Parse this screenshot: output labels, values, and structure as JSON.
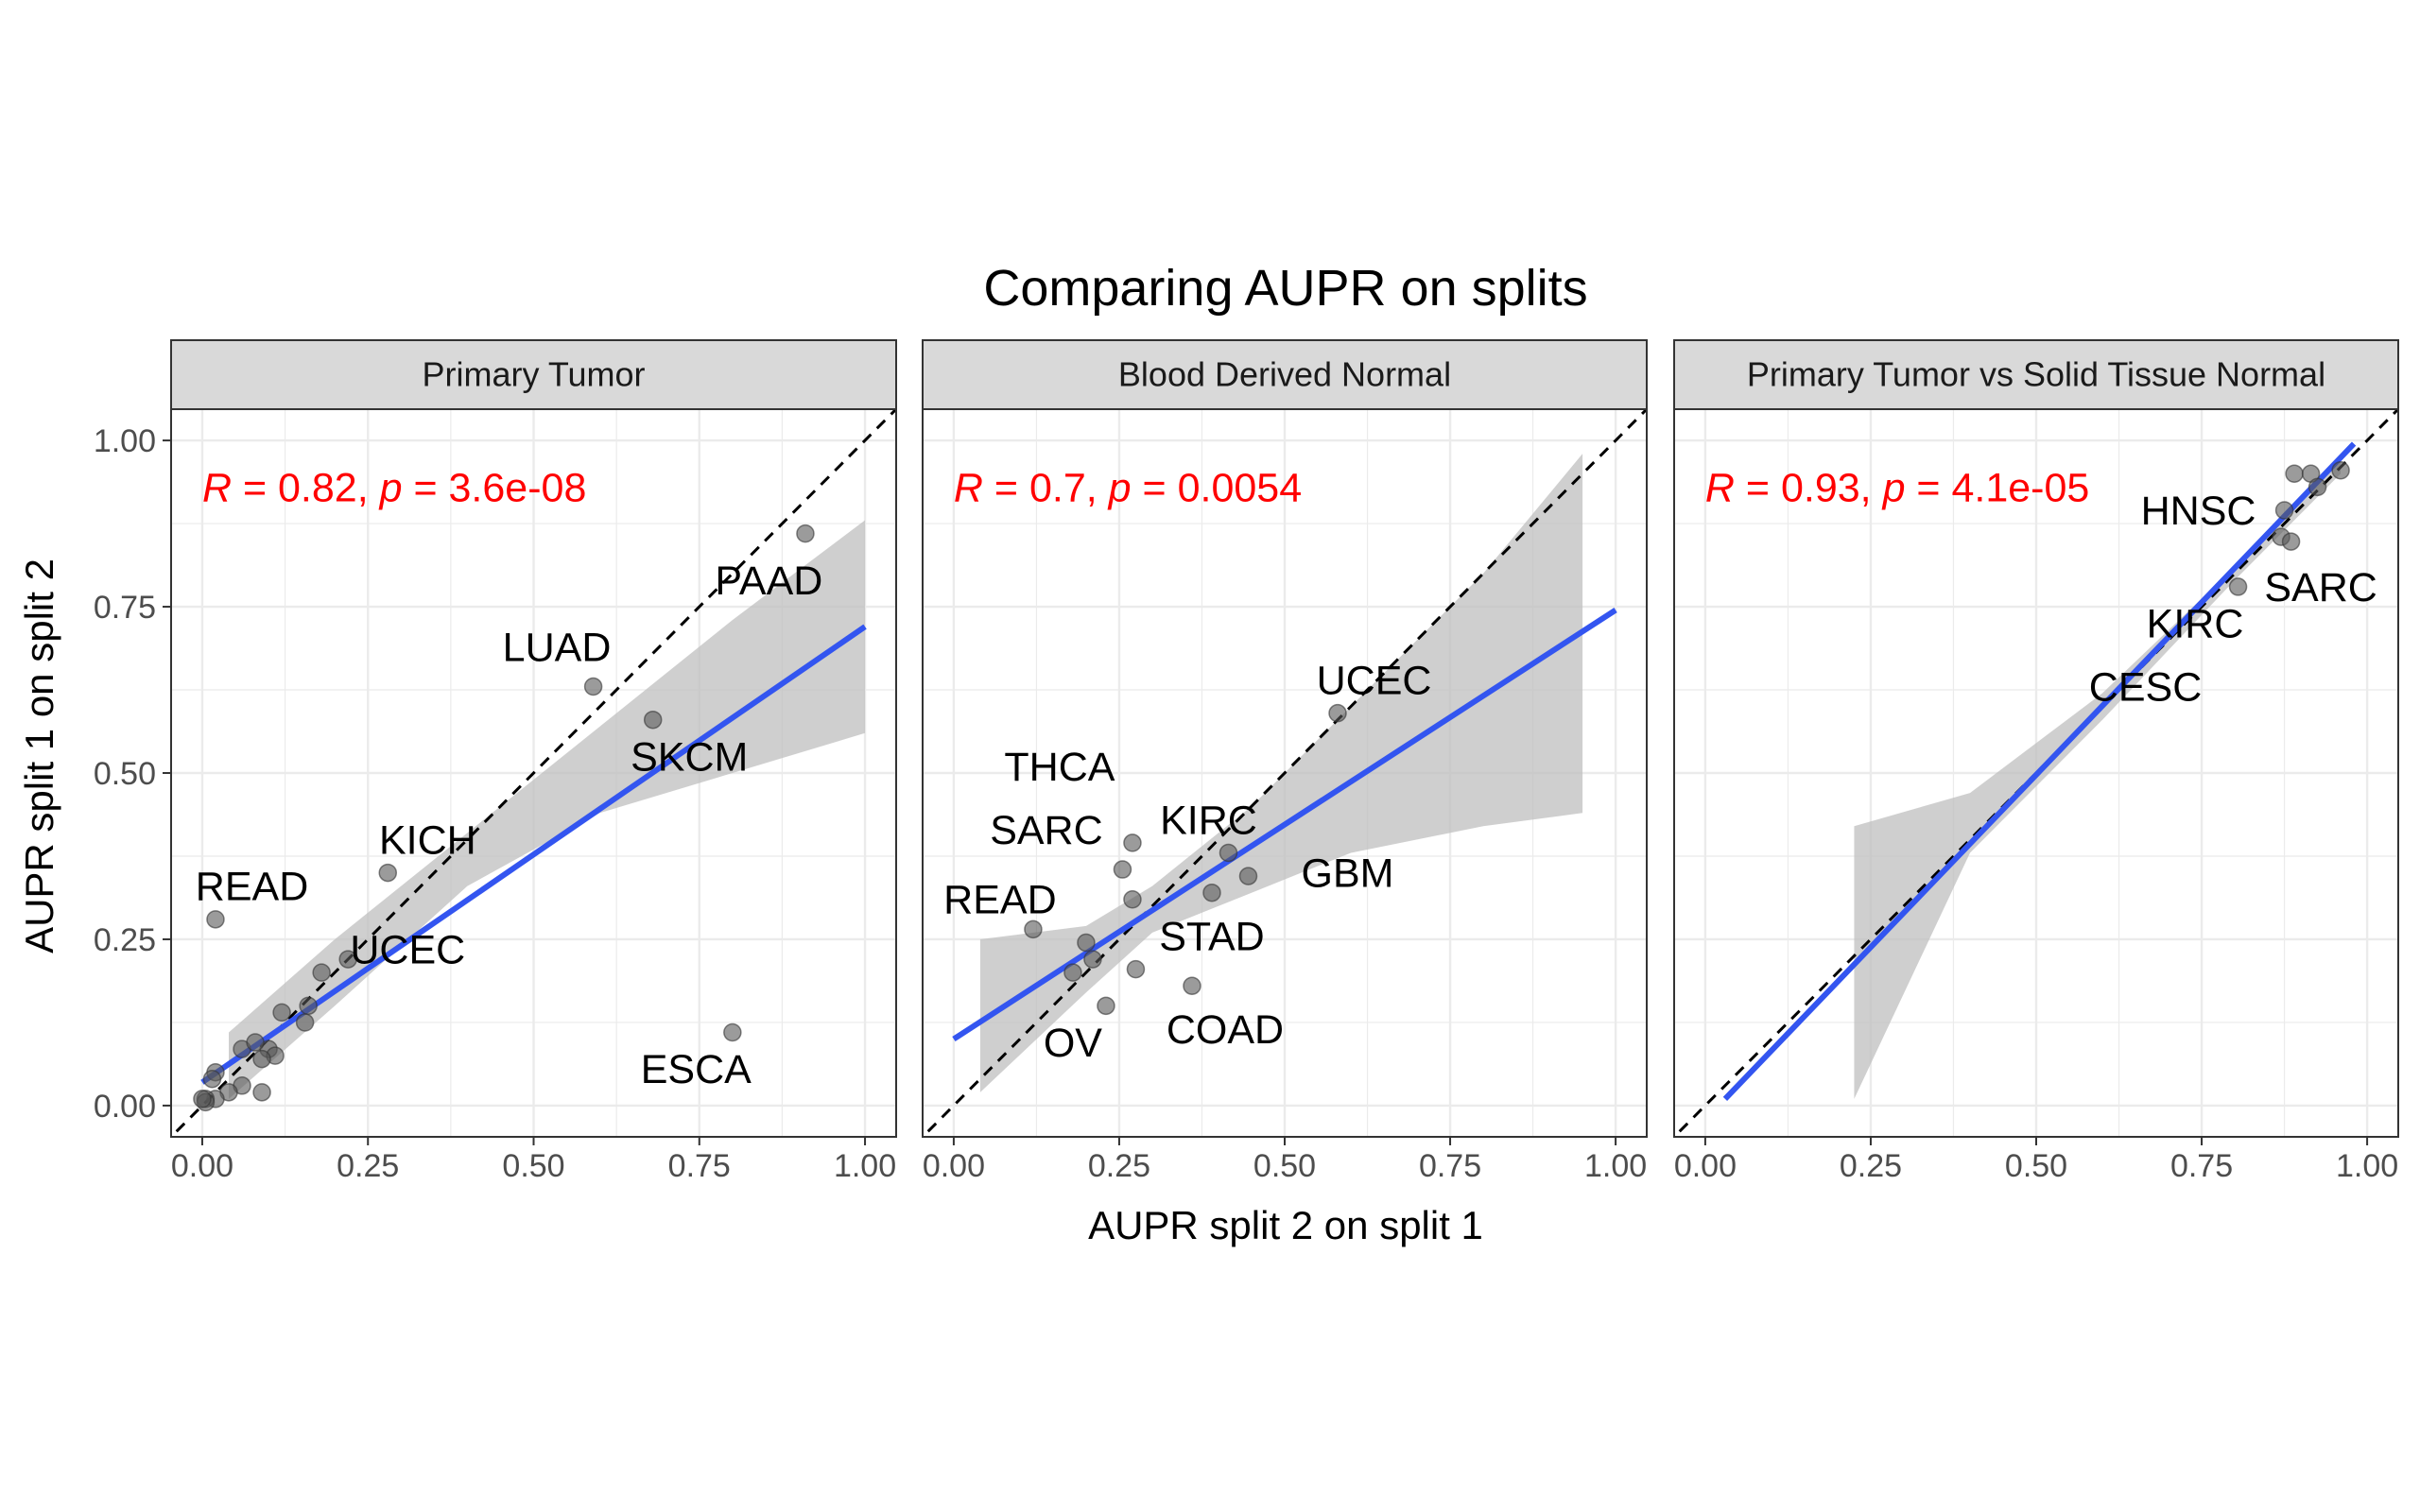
{
  "title": "Comparing AUPR on splits",
  "xlabel": "AUPR split 2 on split 1",
  "ylabel": "AUPR split 1 on split 2",
  "ticks": [
    "0.00",
    "0.25",
    "0.50",
    "0.75",
    "1.00"
  ],
  "colors": {
    "point": "#595959",
    "fit_line": "#3355f0",
    "ribbon": "#bfbfbf",
    "stat_text": "#ff0000",
    "strip_bg": "#d9d9d9",
    "grid": "#ebebeb"
  },
  "chart_data": [
    {
      "type": "scatter",
      "panel": "Primary Tumor",
      "stat": {
        "r_label": "R",
        "r": "0.82",
        "p_label": "p",
        "p": "3.6e-08"
      },
      "xlim": [
        0,
        1
      ],
      "ylim": [
        0,
        1
      ],
      "identity_line": true,
      "fit": {
        "x": [
          0.0,
          1.0
        ],
        "y": [
          0.035,
          0.72
        ]
      },
      "ribbon": {
        "x": [
          0.04,
          0.2,
          0.4,
          0.6,
          0.8,
          1.0
        ],
        "upper": [
          0.11,
          0.25,
          0.41,
          0.57,
          0.73,
          0.88
        ],
        "lower": [
          0.01,
          0.15,
          0.33,
          0.44,
          0.5,
          0.56
        ]
      },
      "points": [
        {
          "x": 0.02,
          "y": 0.28
        },
        {
          "x": 0.28,
          "y": 0.35
        },
        {
          "x": 0.59,
          "y": 0.63
        },
        {
          "x": 0.68,
          "y": 0.58
        },
        {
          "x": 0.91,
          "y": 0.86
        },
        {
          "x": 0.8,
          "y": 0.11
        },
        {
          "x": 0.18,
          "y": 0.2
        },
        {
          "x": 0.22,
          "y": 0.22
        },
        {
          "x": 0.12,
          "y": 0.14
        },
        {
          "x": 0.16,
          "y": 0.15
        },
        {
          "x": 0.155,
          "y": 0.125
        },
        {
          "x": 0.1,
          "y": 0.085
        },
        {
          "x": 0.11,
          "y": 0.075
        },
        {
          "x": 0.09,
          "y": 0.07
        },
        {
          "x": 0.06,
          "y": 0.085
        },
        {
          "x": 0.08,
          "y": 0.095
        },
        {
          "x": 0.06,
          "y": 0.03
        },
        {
          "x": 0.09,
          "y": 0.02
        },
        {
          "x": 0.04,
          "y": 0.02
        },
        {
          "x": 0.02,
          "y": 0.05
        },
        {
          "x": 0.015,
          "y": 0.04
        },
        {
          "x": 0.02,
          "y": 0.01
        },
        {
          "x": 0.005,
          "y": 0.01
        },
        {
          "x": 0.005,
          "y": 0.005
        },
        {
          "x": 0.0,
          "y": 0.01
        }
      ],
      "labels": [
        {
          "text": "READ",
          "x": 0.075,
          "y": 0.33
        },
        {
          "text": "KICH",
          "x": 0.34,
          "y": 0.4
        },
        {
          "text": "LUAD",
          "x": 0.535,
          "y": 0.69
        },
        {
          "text": "SKCM",
          "x": 0.735,
          "y": 0.525
        },
        {
          "text": "PAAD",
          "x": 0.855,
          "y": 0.79
        },
        {
          "text": "ESCA",
          "x": 0.745,
          "y": 0.055
        },
        {
          "text": "UCEC",
          "x": 0.31,
          "y": 0.235
        }
      ]
    },
    {
      "type": "scatter",
      "panel": "Blood Derived Normal",
      "stat": {
        "r_label": "R",
        "r": "0.7",
        "p_label": "p",
        "p": "0.0054"
      },
      "xlim": [
        0,
        1
      ],
      "ylim": [
        0,
        1
      ],
      "identity_line": true,
      "fit": {
        "x": [
          0.0,
          1.0
        ],
        "y": [
          0.1,
          0.745
        ]
      },
      "ribbon": {
        "x": [
          0.04,
          0.2,
          0.3,
          0.45,
          0.6,
          0.8,
          0.95
        ],
        "upper": [
          0.25,
          0.27,
          0.33,
          0.45,
          0.6,
          0.8,
          0.98
        ],
        "lower": [
          0.02,
          0.17,
          0.26,
          0.32,
          0.38,
          0.42,
          0.44
        ]
      },
      "points": [
        {
          "x": 0.12,
          "y": 0.265
        },
        {
          "x": 0.18,
          "y": 0.2
        },
        {
          "x": 0.2,
          "y": 0.245
        },
        {
          "x": 0.21,
          "y": 0.22
        },
        {
          "x": 0.23,
          "y": 0.15
        },
        {
          "x": 0.255,
          "y": 0.355
        },
        {
          "x": 0.27,
          "y": 0.31
        },
        {
          "x": 0.27,
          "y": 0.395
        },
        {
          "x": 0.275,
          "y": 0.205
        },
        {
          "x": 0.36,
          "y": 0.18
        },
        {
          "x": 0.39,
          "y": 0.32
        },
        {
          "x": 0.415,
          "y": 0.38
        },
        {
          "x": 0.445,
          "y": 0.345
        },
        {
          "x": 0.58,
          "y": 0.59
        }
      ],
      "labels": [
        {
          "text": "UCEC",
          "x": 0.635,
          "y": 0.64
        },
        {
          "text": "THCA",
          "x": 0.16,
          "y": 0.51
        },
        {
          "text": "SARC",
          "x": 0.14,
          "y": 0.415
        },
        {
          "text": "KIRC",
          "x": 0.385,
          "y": 0.43
        },
        {
          "text": "GBM",
          "x": 0.595,
          "y": 0.35
        },
        {
          "text": "READ",
          "x": 0.07,
          "y": 0.31
        },
        {
          "text": "STAD",
          "x": 0.39,
          "y": 0.255
        },
        {
          "text": "COAD",
          "x": 0.41,
          "y": 0.115
        },
        {
          "text": "OV",
          "x": 0.18,
          "y": 0.095
        }
      ]
    },
    {
      "type": "scatter",
      "panel": "Primary Tumor vs Solid Tissue Normal",
      "stat": {
        "r_label": "R",
        "r": "0.93",
        "p_label": "p",
        "p": "4.1e-05"
      },
      "xlim": [
        0,
        1
      ],
      "ylim": [
        0,
        1
      ],
      "identity_line": true,
      "fit": {
        "x": [
          0.03,
          0.98
        ],
        "y": [
          0.01,
          0.995
        ]
      },
      "ribbon": {
        "x": [
          0.225,
          0.4,
          0.6,
          0.8,
          0.96
        ],
        "upper": [
          0.42,
          0.47,
          0.62,
          0.81,
          0.98
        ],
        "lower": [
          0.01,
          0.38,
          0.58,
          0.79,
          0.95
        ]
      },
      "points": [
        {
          "x": 0.89,
          "y": 0.95
        },
        {
          "x": 0.915,
          "y": 0.95
        },
        {
          "x": 0.96,
          "y": 0.955
        },
        {
          "x": 0.925,
          "y": 0.93
        },
        {
          "x": 0.875,
          "y": 0.895
        },
        {
          "x": 0.87,
          "y": 0.855
        },
        {
          "x": 0.885,
          "y": 0.848
        },
        {
          "x": 0.805,
          "y": 0.78
        }
      ],
      "labels": [
        {
          "text": "HNSC",
          "x": 0.745,
          "y": 0.895
        },
        {
          "text": "SARC",
          "x": 0.93,
          "y": 0.78
        },
        {
          "text": "KIRC",
          "x": 0.74,
          "y": 0.725
        },
        {
          "text": "CESC",
          "x": 0.665,
          "y": 0.63
        }
      ]
    }
  ]
}
